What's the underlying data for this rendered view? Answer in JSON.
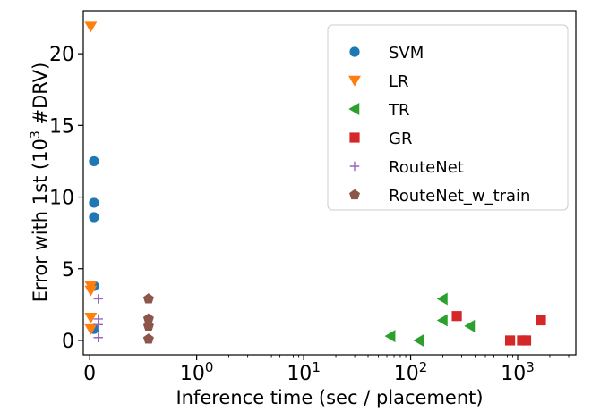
{
  "chart_data": {
    "type": "scatter",
    "xlabel": "Inference time (sec / placement)",
    "ylabel_parts": [
      "Error with 1st (10",
      "3",
      " #DRV)"
    ],
    "x_scale": "symlog",
    "xlim": [
      -0.06,
      3500
    ],
    "ylim": [
      -1,
      23
    ],
    "grid": false,
    "legend_position": "top-right",
    "y_ticks": [
      {
        "value": 0,
        "label": "0"
      },
      {
        "value": 5,
        "label": "5"
      },
      {
        "value": 10,
        "label": "10"
      },
      {
        "value": 15,
        "label": "15"
      },
      {
        "value": 20,
        "label": "20"
      }
    ],
    "x_ticks": [
      {
        "value": 0,
        "base": "0",
        "exp": ""
      },
      {
        "value": 1,
        "base": "10",
        "exp": "0"
      },
      {
        "value": 10,
        "base": "10",
        "exp": "1"
      },
      {
        "value": 100,
        "base": "10",
        "exp": "2"
      },
      {
        "value": 1000,
        "base": "10",
        "exp": "3"
      }
    ],
    "series": [
      {
        "name": "SVM",
        "marker": "circle",
        "color": "#1f77b4",
        "points": [
          [
            0.04,
            12.5
          ],
          [
            0.04,
            9.6
          ],
          [
            0.04,
            8.6
          ],
          [
            0.04,
            3.8
          ],
          [
            0.04,
            0.8
          ]
        ]
      },
      {
        "name": "LR",
        "marker": "triangle-down",
        "color": "#ff7f0e",
        "points": [
          [
            0.01,
            21.9
          ],
          [
            0.01,
            3.8
          ],
          [
            0.01,
            3.5
          ],
          [
            0.01,
            1.6
          ],
          [
            0.01,
            0.8
          ]
        ]
      },
      {
        "name": "TR",
        "marker": "triangle-left",
        "color": "#2ca02c",
        "points": [
          [
            65,
            0.3
          ],
          [
            120,
            0.0
          ],
          [
            200,
            2.9
          ],
          [
            200,
            1.4
          ],
          [
            360,
            1.0
          ]
        ]
      },
      {
        "name": "GR",
        "marker": "square",
        "color": "#d62728",
        "points": [
          [
            270,
            1.7
          ],
          [
            850,
            0.0
          ],
          [
            1100,
            0.0
          ],
          [
            1200,
            0.0
          ],
          [
            1650,
            1.4
          ]
        ]
      },
      {
        "name": "RouteNet",
        "marker": "plus",
        "color": "#9467bd",
        "points": [
          [
            0.08,
            2.9
          ],
          [
            0.08,
            1.5
          ],
          [
            0.08,
            1.1
          ],
          [
            0.08,
            0.2
          ]
        ]
      },
      {
        "name": "RouteNet_w_train",
        "marker": "pentagon",
        "color": "#8c564b",
        "points": [
          [
            0.55,
            2.9
          ],
          [
            0.55,
            1.5
          ],
          [
            0.55,
            1.0
          ],
          [
            0.55,
            0.1
          ]
        ]
      }
    ]
  }
}
